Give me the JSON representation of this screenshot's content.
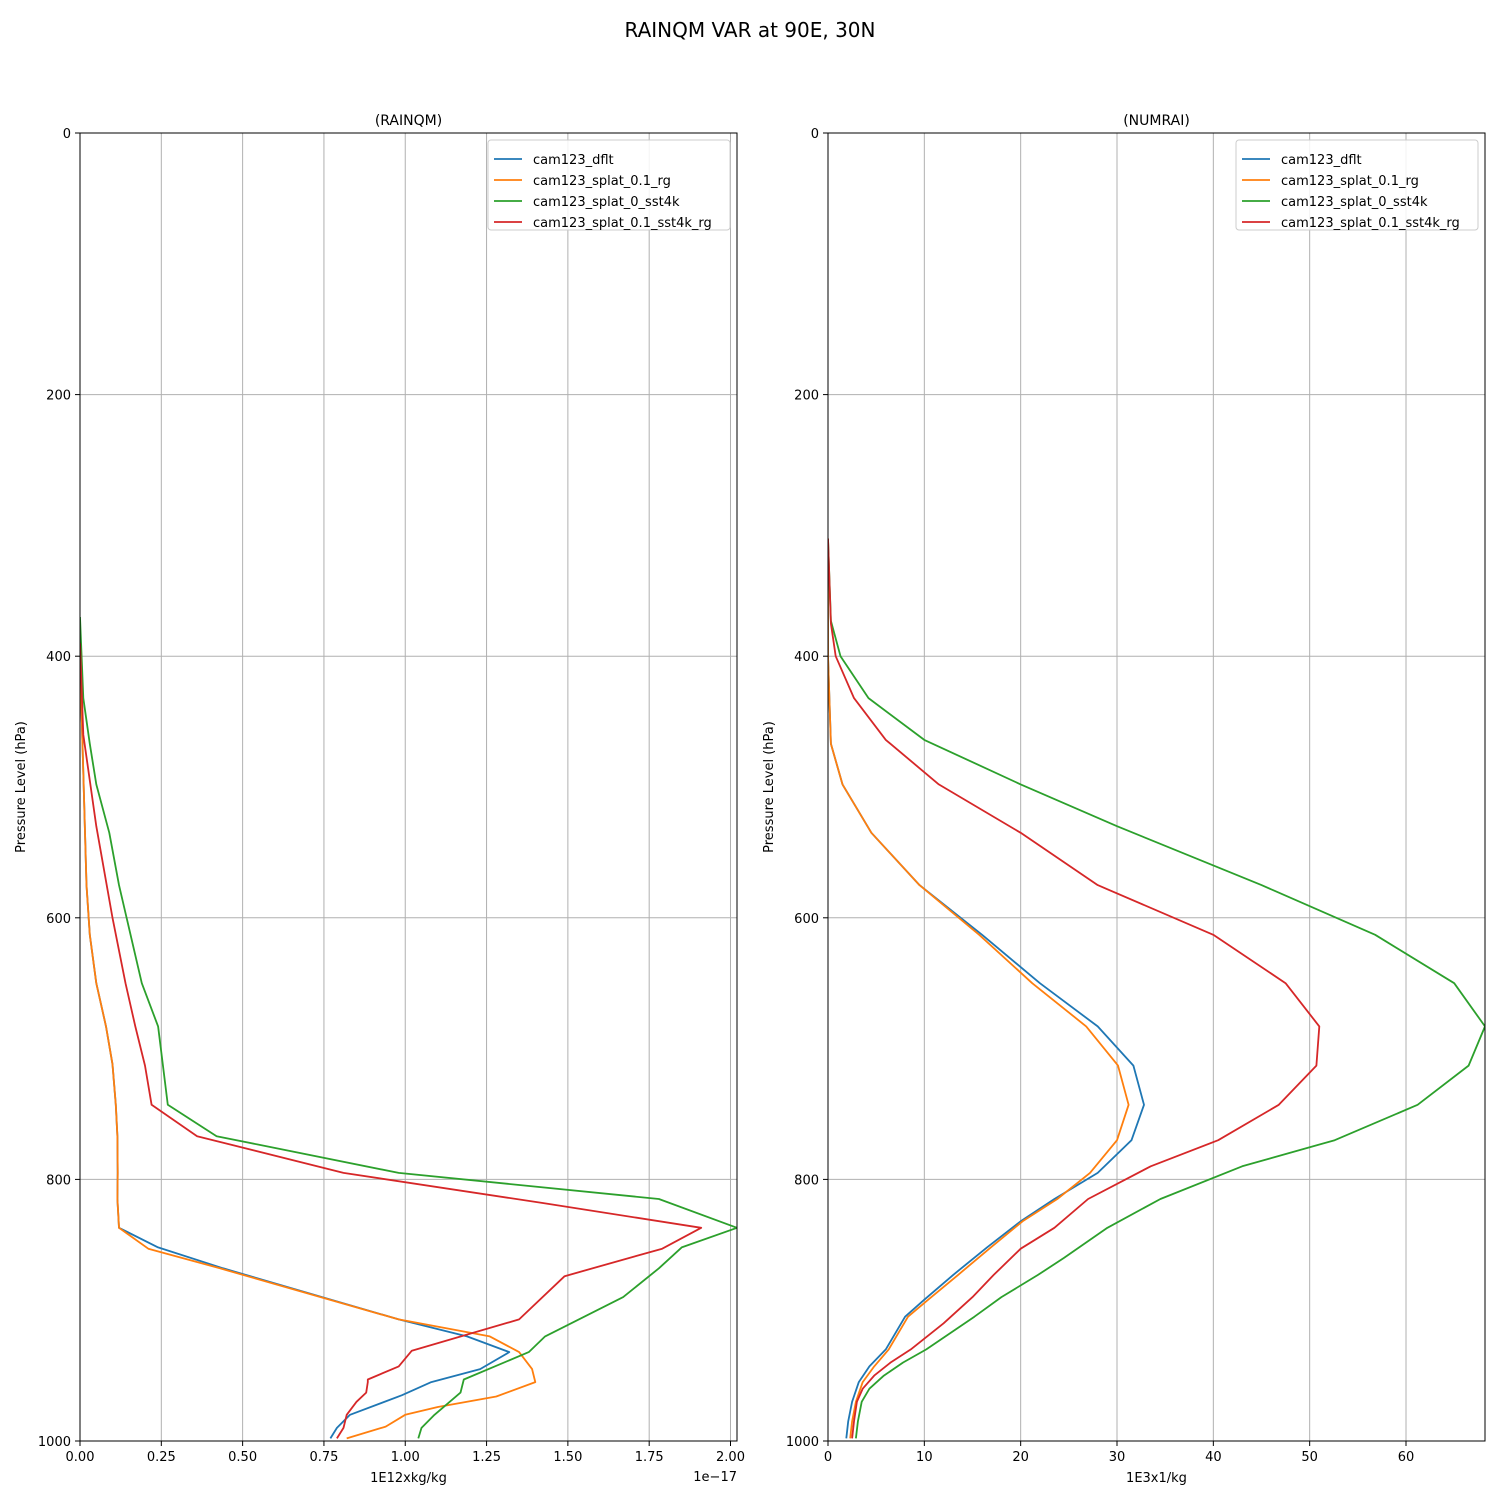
{
  "figure": {
    "suptitle": "RAINQM VAR at 90E, 30N"
  },
  "series_colors": [
    "#1f77b4",
    "#ff7f0e",
    "#2ca02c",
    "#d62728"
  ],
  "chart_data": [
    {
      "type": "line",
      "title": "(RAINQM)",
      "xlabel": "1E12xkg/kg",
      "ylabel": "Pressure Level (hPa)",
      "x_offset_label": "1e−17",
      "xlim": [
        0,
        2.02
      ],
      "ylim": [
        1000,
        0
      ],
      "y_inverted": true,
      "x_scale_exponent": -17,
      "xticks": [
        0.0,
        0.25,
        0.5,
        0.75,
        1.0,
        1.25,
        1.5,
        1.75,
        2.0
      ],
      "xtick_labels": [
        "0.00",
        "0.25",
        "0.50",
        "0.75",
        "1.00",
        "1.25",
        "1.50",
        "1.75",
        "2.00"
      ],
      "yticks": [
        0,
        200,
        400,
        600,
        800,
        1000
      ],
      "ytick_labels": [
        "0",
        "200",
        "400",
        "600",
        "800",
        "1000"
      ],
      "grid": true,
      "legend": "upper right",
      "series": [
        {
          "name": "cam123_dflt",
          "x": [
            0.77,
            0.79,
            0.83,
            0.99,
            1.08,
            1.23,
            1.32,
            1.19,
            0.98,
            0.44,
            0.24,
            0.12,
            0.115,
            0.116,
            0.115,
            0.11,
            0.1,
            0.08,
            0.05,
            0.03,
            0.02,
            0.0
          ],
          "y": [
            998,
            990,
            980,
            965,
            955,
            945,
            932,
            920,
            907,
            868,
            852,
            837,
            815,
            795,
            767,
            743,
            712,
            683,
            650,
            613,
            575,
            400
          ]
        },
        {
          "name": "cam123_splat_0.1_rg",
          "x": [
            0.82,
            0.94,
            1.0,
            1.1,
            1.28,
            1.4,
            1.39,
            1.35,
            1.26,
            0.98,
            0.43,
            0.21,
            0.12,
            0.115,
            0.116,
            0.115,
            0.11,
            0.1,
            0.08,
            0.05,
            0.03,
            0.02,
            0.0
          ],
          "y": [
            998,
            989,
            980,
            974,
            966,
            955,
            945,
            932,
            920,
            907,
            868,
            853,
            837,
            815,
            795,
            767,
            743,
            712,
            683,
            650,
            613,
            575,
            400
          ]
        },
        {
          "name": "cam123_splat_0_sst4k",
          "x": [
            1.04,
            1.05,
            1.09,
            1.17,
            1.18,
            1.38,
            1.43,
            1.67,
            1.78,
            1.85,
            2.02,
            1.78,
            0.98,
            0.42,
            0.27,
            0.24,
            0.19,
            0.12,
            0.09,
            0.05,
            0.03,
            0.01,
            0.0
          ],
          "y": [
            998,
            990,
            980,
            963,
            953,
            932,
            920,
            890,
            868,
            852,
            837,
            815,
            795,
            767,
            743,
            683,
            650,
            575,
            535,
            498,
            467,
            432,
            370
          ]
        },
        {
          "name": "cam123_splat_0.1_sst4k_rg",
          "x": [
            0.79,
            0.81,
            0.82,
            0.85,
            0.88,
            0.885,
            0.885,
            0.98,
            1.02,
            1.35,
            1.49,
            1.79,
            1.91,
            1.42,
            0.81,
            0.36,
            0.22,
            0.2,
            0.17,
            0.14,
            0.1,
            0.05,
            0.01,
            0.0
          ],
          "y": [
            998,
            990,
            980,
            970,
            963,
            955,
            953,
            943,
            931,
            907,
            874,
            853,
            837,
            818,
            795,
            767,
            743,
            713,
            683,
            650,
            600,
            530,
            460,
            390
          ]
        }
      ]
    },
    {
      "type": "line",
      "title": "(NUMRAI)",
      "xlabel": "1E3x1/kg",
      "ylabel": "Pressure Level (hPa)",
      "xlim": [
        0,
        68.2
      ],
      "ylim": [
        1000,
        0
      ],
      "y_inverted": true,
      "xticks": [
        0,
        10,
        20,
        30,
        40,
        50,
        60
      ],
      "xtick_labels": [
        "0",
        "10",
        "20",
        "30",
        "40",
        "50",
        "60"
      ],
      "yticks": [
        0,
        200,
        400,
        600,
        800,
        1000
      ],
      "ytick_labels": [
        "0",
        "200",
        "400",
        "600",
        "800",
        "1000"
      ],
      "grid": true,
      "legend": "upper right",
      "series": [
        {
          "name": "cam123_dflt",
          "x": [
            1.9,
            2.1,
            2.5,
            3.2,
            4.3,
            6.0,
            8.0,
            10.0,
            13.0,
            16.5,
            20.0,
            23.5,
            28.0,
            31.5,
            32.8,
            31.7,
            28.0,
            22.0,
            16.0,
            9.5,
            4.5,
            1.5,
            0.3,
            0.0,
            0.0
          ],
          "y": [
            998,
            985,
            970,
            955,
            943,
            930,
            905,
            892,
            873,
            852,
            832,
            815,
            795,
            770,
            743,
            713,
            683,
            650,
            613,
            575,
            535,
            498,
            467,
            400,
            330
          ]
        },
        {
          "name": "cam123_splat_0.1_rg",
          "x": [
            2.3,
            2.5,
            2.9,
            3.6,
            4.8,
            6.3,
            8.3,
            10.4,
            13.5,
            16.9,
            20.2,
            23.8,
            27.2,
            30.0,
            31.2,
            30.1,
            26.8,
            21.2,
            15.7,
            9.5,
            4.5,
            1.5,
            0.3,
            0.0,
            0.0
          ],
          "y": [
            998,
            985,
            970,
            955,
            943,
            930,
            905,
            892,
            873,
            852,
            832,
            815,
            795,
            770,
            743,
            713,
            683,
            650,
            613,
            575,
            535,
            498,
            467,
            400,
            330
          ]
        },
        {
          "name": "cam123_splat_0_sst4k",
          "x": [
            2.9,
            3.1,
            3.5,
            4.3,
            5.8,
            7.8,
            10.2,
            15.2,
            18.0,
            21.8,
            24.5,
            29.0,
            34.5,
            43.0,
            52.6,
            61.2,
            66.5,
            68.2,
            65.0,
            56.8,
            45.0,
            30.0,
            20.0,
            10.0,
            4.2,
            1.3,
            0.3,
            0.0
          ],
          "y": [
            998,
            985,
            970,
            960,
            950,
            940,
            930,
            905,
            890,
            873,
            860,
            837,
            815,
            790,
            770,
            743,
            713,
            683,
            650,
            613,
            575,
            530,
            498,
            464,
            432,
            400,
            373,
            310
          ]
        },
        {
          "name": "cam123_splat_0.1_sst4k_rg",
          "x": [
            2.5,
            2.7,
            3.0,
            3.6,
            4.8,
            6.5,
            8.6,
            12.0,
            15.0,
            17.2,
            20.0,
            23.5,
            27.0,
            33.5,
            40.5,
            46.8,
            50.7,
            51.0,
            47.5,
            40.0,
            28.0,
            20.0,
            11.5,
            6.0,
            2.7,
            0.8,
            0.3,
            0.0
          ],
          "y": [
            998,
            985,
            970,
            960,
            950,
            940,
            930,
            910,
            890,
            873,
            853,
            837,
            815,
            790,
            770,
            743,
            713,
            683,
            650,
            613,
            575,
            535,
            498,
            464,
            432,
            400,
            375,
            310
          ]
        }
      ]
    }
  ]
}
